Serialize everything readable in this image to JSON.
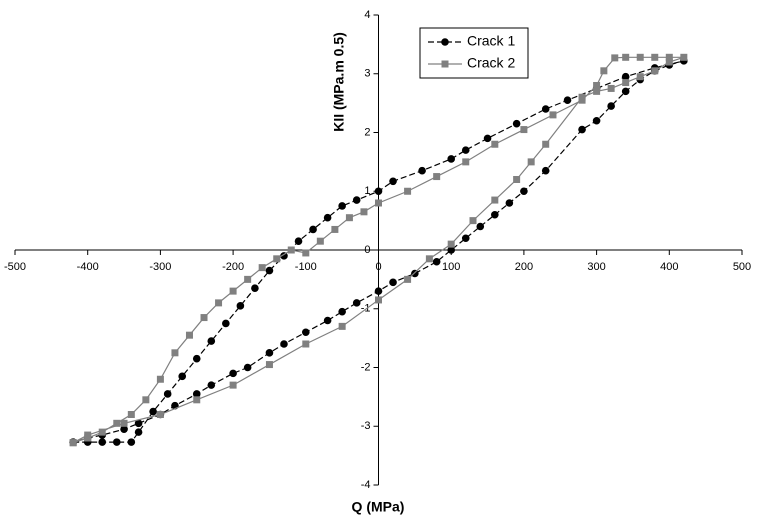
{
  "chart_data": {
    "type": "line",
    "x_label": "Q (MPa)",
    "y_label": "KII (MPa.m 0.5)",
    "xlim": [
      -500,
      500
    ],
    "xticks": [
      -500,
      -400,
      -300,
      -200,
      -100,
      0,
      100,
      200,
      300,
      400,
      500
    ],
    "ylim": [
      -4,
      4
    ],
    "yticks": [
      -4,
      -3,
      -2,
      -1,
      0,
      1,
      2,
      3,
      4
    ],
    "legend": "top-right",
    "series": [
      {
        "name": "Crack 1",
        "color": "#000000",
        "marker": "circle",
        "dash": true,
        "x": [
          -420,
          -400,
          -380,
          -360,
          -340,
          -330,
          -310,
          -290,
          -270,
          -250,
          -230,
          -210,
          -190,
          -170,
          -150,
          -130,
          -110,
          -90,
          -70,
          -50,
          -30,
          0,
          20,
          60,
          100,
          120,
          150,
          190,
          230,
          260,
          300,
          340,
          380,
          420,
          400,
          380,
          360,
          340,
          320,
          300,
          280,
          230,
          200,
          180,
          160,
          140,
          120,
          100,
          80,
          50,
          20,
          0,
          -30,
          -50,
          -70,
          -100,
          -130,
          -150,
          -180,
          -200,
          -230,
          -250,
          -280,
          -300,
          -330,
          -350,
          -380,
          -400,
          -420
        ],
        "values": [
          -3.27,
          -3.27,
          -3.27,
          -3.27,
          -3.27,
          -3.1,
          -2.75,
          -2.45,
          -2.15,
          -1.85,
          -1.55,
          -1.25,
          -0.95,
          -0.65,
          -0.35,
          -0.1,
          0.15,
          0.35,
          0.55,
          0.75,
          0.85,
          1.0,
          1.17,
          1.35,
          1.55,
          1.7,
          1.9,
          2.15,
          2.4,
          2.55,
          2.75,
          2.95,
          3.1,
          3.22,
          3.15,
          3.05,
          2.9,
          2.7,
          2.45,
          2.2,
          2.05,
          1.35,
          1.0,
          0.8,
          0.6,
          0.4,
          0.2,
          0.0,
          -0.2,
          -0.4,
          -0.55,
          -0.7,
          -0.9,
          -1.05,
          -1.2,
          -1.4,
          -1.6,
          -1.75,
          -2.0,
          -2.1,
          -2.3,
          -2.45,
          -2.65,
          -2.8,
          -2.95,
          -3.05,
          -3.15,
          -3.2,
          -3.27
        ]
      },
      {
        "name": "Crack 2",
        "color": "#808080",
        "marker": "square",
        "dash": false,
        "x": [
          -420,
          -400,
          -380,
          -360,
          -340,
          -320,
          -300,
          -280,
          -260,
          -240,
          -220,
          -200,
          -180,
          -160,
          -140,
          -120,
          -100,
          -80,
          -60,
          -40,
          -20,
          0,
          40,
          80,
          120,
          160,
          200,
          240,
          280,
          300,
          310,
          325,
          340,
          360,
          380,
          400,
          420,
          400,
          380,
          360,
          340,
          320,
          300,
          280,
          230,
          210,
          190,
          160,
          130,
          100,
          70,
          40,
          0,
          -50,
          -100,
          -150,
          -200,
          -250,
          -300,
          -350,
          -400,
          -420
        ],
        "values": [
          -3.28,
          -3.2,
          -3.1,
          -2.95,
          -2.8,
          -2.55,
          -2.2,
          -1.75,
          -1.45,
          -1.15,
          -0.9,
          -0.7,
          -0.5,
          -0.3,
          -0.15,
          0.0,
          -0.05,
          0.15,
          0.35,
          0.55,
          0.65,
          0.8,
          1.0,
          1.25,
          1.5,
          1.8,
          2.05,
          2.3,
          2.55,
          2.8,
          3.05,
          3.27,
          3.28,
          3.28,
          3.28,
          3.28,
          3.28,
          3.2,
          3.05,
          2.95,
          2.85,
          2.75,
          2.7,
          2.6,
          1.8,
          1.5,
          1.2,
          0.85,
          0.5,
          0.1,
          -0.15,
          -0.5,
          -0.85,
          -1.3,
          -1.6,
          -1.95,
          -2.3,
          -2.55,
          -2.8,
          -2.95,
          -3.15,
          -3.28
        ]
      }
    ]
  }
}
